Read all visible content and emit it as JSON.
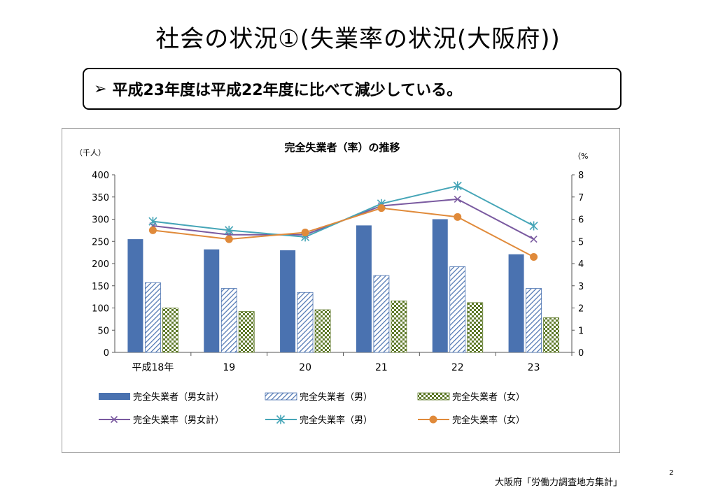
{
  "slide": {
    "title": "社会の状況①(失業率の状況(大阪府))",
    "callout_marker": "➢",
    "callout_text": "平成23年度は平成22年度に比べて減少している。",
    "source": "大阪府「労働力調査地方集計」",
    "page_number": "2"
  },
  "chart_data": {
    "type": "bar+line",
    "title": "完全失業者（率）の推移",
    "left_axis_unit": "（千人）",
    "right_axis_unit": "（%",
    "categories": [
      "平成18年",
      "19",
      "20",
      "21",
      "22",
      "23"
    ],
    "left_ylim": [
      0,
      400
    ],
    "left_ticks": [
      "0",
      "50",
      "100",
      "150",
      "200",
      "250",
      "300",
      "350",
      "400"
    ],
    "right_ylim": [
      0,
      8
    ],
    "right_ticks": [
      "0",
      "1",
      "2",
      "3",
      "4",
      "5",
      "6",
      "7",
      "8"
    ],
    "bar_series": [
      {
        "name": "完全失業者（男女計）",
        "pattern": "solid",
        "color": "#4a72b0",
        "values": [
          255,
          232,
          230,
          286,
          300,
          221
        ]
      },
      {
        "name": "完全失業者（男）",
        "pattern": "hatch",
        "color": "#4a72b0",
        "values": [
          157,
          144,
          135,
          173,
          193,
          144
        ]
      },
      {
        "name": "完全失業者（女）",
        "pattern": "checker",
        "color": "#5f7a2a",
        "values": [
          100,
          92,
          96,
          116,
          112,
          78
        ]
      }
    ],
    "line_series": [
      {
        "name": "完全失業率（男女計）",
        "marker": "x",
        "color": "#7a5aa0",
        "values": [
          5.7,
          5.3,
          5.3,
          6.6,
          6.9,
          5.1
        ]
      },
      {
        "name": "完全失業率（男）",
        "marker": "asterisk",
        "color": "#45a5b7",
        "values": [
          5.9,
          5.5,
          5.2,
          6.7,
          7.5,
          5.7
        ]
      },
      {
        "name": "完全失業率（女）",
        "marker": "circle",
        "color": "#e08a3a",
        "values": [
          5.5,
          5.1,
          5.4,
          6.5,
          6.1,
          4.3
        ]
      }
    ],
    "grid": false,
    "legend_position": "bottom"
  }
}
